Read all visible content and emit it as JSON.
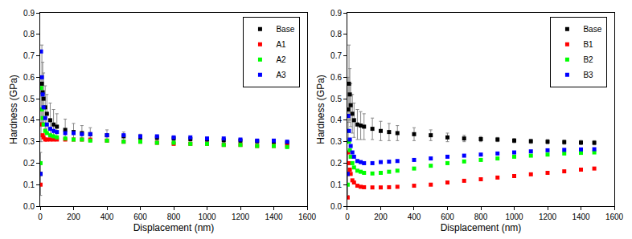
{
  "chart_data": [
    {
      "type": "scatter",
      "marker": "square",
      "grid": false,
      "legend": "upper right",
      "x_label": "Displacement (nm)",
      "y_label": "Hardness (GPa)",
      "xlim": [
        0,
        1600
      ],
      "xticks": [
        0,
        200,
        400,
        600,
        800,
        1000,
        1200,
        1400,
        1600
      ],
      "ylim": [
        0,
        0.9
      ],
      "yticks": [
        {
          "value": 0,
          "label": "0.0"
        },
        0.1,
        0.2,
        0.3,
        0.4,
        0.5,
        0.6,
        0.7,
        0.8,
        0.9
      ],
      "x": [
        2,
        5,
        10,
        15,
        20,
        30,
        40,
        60,
        80,
        100,
        150,
        200,
        250,
        300,
        400,
        500,
        600,
        700,
        800,
        900,
        1000,
        1100,
        1200,
        1300,
        1400,
        1480
      ],
      "series": [
        {
          "name": "Base",
          "color": "#000000",
          "values": [
            0.15,
            0.45,
            0.57,
            0.53,
            0.5,
            0.46,
            0.43,
            0.4,
            0.38,
            0.37,
            0.355,
            0.345,
            0.34,
            0.335,
            0.33,
            0.325,
            0.32,
            0.318,
            0.315,
            0.312,
            0.31,
            0.307,
            0.305,
            0.302,
            0.3,
            0.295
          ],
          "error": [
            0.1,
            0.15,
            0.18,
            0.14,
            0.12,
            0.1,
            0.09,
            0.08,
            0.07,
            0.06,
            0.05,
            0.04,
            0.035,
            0.03,
            0.025,
            0.02,
            0.015,
            0.012,
            0.01,
            0.01,
            0.01,
            0.01,
            0.01,
            0.01,
            0.01,
            0.01
          ]
        },
        {
          "name": "A1",
          "color": "#ff0000",
          "values": [
            0.1,
            0.45,
            0.38,
            0.33,
            0.32,
            0.31,
            0.31,
            0.31,
            0.31,
            0.31,
            0.31,
            0.31,
            0.31,
            0.31,
            0.305,
            0.3,
            0.3,
            0.295,
            0.29,
            0.29,
            0.29,
            0.285,
            0.285,
            0.28,
            0.28,
            0.28
          ]
        },
        {
          "name": "A2",
          "color": "#00ff00",
          "values": [
            0.2,
            0.55,
            0.45,
            0.41,
            0.38,
            0.35,
            0.34,
            0.33,
            0.325,
            0.32,
            0.315,
            0.31,
            0.31,
            0.305,
            0.305,
            0.3,
            0.3,
            0.295,
            0.295,
            0.29,
            0.29,
            0.285,
            0.285,
            0.28,
            0.28,
            0.275
          ]
        },
        {
          "name": "A3",
          "color": "#0000ff",
          "values": [
            0.15,
            0.72,
            0.6,
            0.52,
            0.46,
            0.41,
            0.38,
            0.36,
            0.35,
            0.345,
            0.34,
            0.34,
            0.335,
            0.335,
            0.33,
            0.33,
            0.325,
            0.325,
            0.32,
            0.32,
            0.315,
            0.315,
            0.31,
            0.305,
            0.305,
            0.3
          ]
        }
      ]
    },
    {
      "type": "scatter",
      "marker": "square",
      "grid": false,
      "legend": "upper right",
      "x_label": "Displacement (nm)",
      "y_label": "Hardness (GPa)",
      "xlim": [
        0,
        1600
      ],
      "xticks": [
        0,
        200,
        400,
        600,
        800,
        1000,
        1200,
        1400,
        1600
      ],
      "ylim": [
        0,
        0.9
      ],
      "yticks": [
        {
          "value": 0,
          "label": "0.0"
        },
        0.1,
        0.2,
        0.3,
        0.4,
        0.5,
        0.6,
        0.7,
        0.8,
        0.9
      ],
      "x": [
        2,
        5,
        10,
        15,
        20,
        30,
        40,
        60,
        80,
        100,
        150,
        200,
        250,
        300,
        400,
        500,
        600,
        700,
        800,
        900,
        1000,
        1100,
        1200,
        1300,
        1400,
        1480
      ],
      "series": [
        {
          "name": "Base",
          "color": "#000000",
          "values": [
            0.15,
            0.45,
            0.57,
            0.52,
            0.47,
            0.43,
            0.4,
            0.38,
            0.375,
            0.37,
            0.36,
            0.35,
            0.345,
            0.34,
            0.335,
            0.33,
            0.32,
            0.315,
            0.312,
            0.31,
            0.305,
            0.302,
            0.3,
            0.298,
            0.296,
            0.295
          ],
          "error": [
            0.1,
            0.15,
            0.18,
            0.12,
            0.1,
            0.09,
            0.08,
            0.07,
            0.065,
            0.06,
            0.05,
            0.045,
            0.04,
            0.035,
            0.03,
            0.025,
            0.02,
            0.015,
            0.012,
            0.01,
            0.01,
            0.01,
            0.01,
            0.01,
            0.01,
            0.01
          ]
        },
        {
          "name": "B1",
          "color": "#ff0000",
          "values": [
            0.04,
            0.25,
            0.2,
            0.17,
            0.15,
            0.12,
            0.11,
            0.095,
            0.09,
            0.088,
            0.087,
            0.087,
            0.088,
            0.09,
            0.095,
            0.1,
            0.11,
            0.118,
            0.125,
            0.133,
            0.14,
            0.148,
            0.155,
            0.162,
            0.17,
            0.175
          ]
        },
        {
          "name": "B2",
          "color": "#00ff00",
          "values": [
            0.1,
            0.35,
            0.3,
            0.26,
            0.23,
            0.2,
            0.18,
            0.165,
            0.16,
            0.155,
            0.152,
            0.155,
            0.16,
            0.165,
            0.175,
            0.188,
            0.2,
            0.208,
            0.215,
            0.222,
            0.23,
            0.235,
            0.24,
            0.245,
            0.248,
            0.25
          ]
        },
        {
          "name": "B3",
          "color": "#0000ff",
          "values": [
            0.15,
            0.42,
            0.35,
            0.31,
            0.28,
            0.25,
            0.23,
            0.21,
            0.205,
            0.2,
            0.2,
            0.205,
            0.207,
            0.21,
            0.215,
            0.222,
            0.23,
            0.235,
            0.24,
            0.245,
            0.25,
            0.255,
            0.26,
            0.262,
            0.264,
            0.265
          ]
        }
      ]
    }
  ]
}
